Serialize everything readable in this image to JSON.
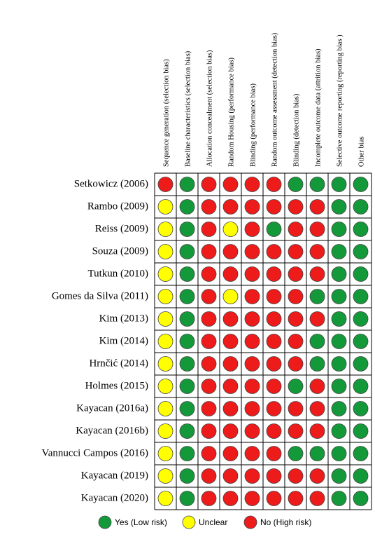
{
  "columns": [
    "Sequence generation (selection bias)",
    "Baseline characteristics (selection bias)",
    "Allocation concealment (selection bias)",
    "Random Housing (performance bias)",
    "Blinding (performance bias)",
    "Random outcome assessment (detection bias)",
    "Blinding  (detection bias)",
    "Incomplete outcome data  (attrition bias)",
    "Selective outcome reporting  (reporting bias )",
    "Other bias"
  ],
  "legend": [
    {
      "label": "Yes (Low risk)",
      "color": "#14993a"
    },
    {
      "label": "Unclear",
      "color": "#ffff00"
    },
    {
      "label": "No (High risk)",
      "color": "#ee1b1b"
    }
  ],
  "rows": [
    {
      "study": "Setkowicz (2006)",
      "ratings": [
        2,
        0,
        2,
        2,
        2,
        2,
        0,
        0,
        0,
        0
      ]
    },
    {
      "study": "Rambo (2009)",
      "ratings": [
        1,
        0,
        2,
        2,
        2,
        2,
        2,
        2,
        0,
        0
      ]
    },
    {
      "study": "Reiss (2009)",
      "ratings": [
        1,
        0,
        2,
        1,
        2,
        0,
        2,
        2,
        0,
        0
      ]
    },
    {
      "study": "Souza (2009)",
      "ratings": [
        1,
        0,
        2,
        2,
        2,
        2,
        2,
        2,
        0,
        0
      ]
    },
    {
      "study": "Tutkun (2010)",
      "ratings": [
        1,
        0,
        2,
        2,
        2,
        2,
        2,
        2,
        0,
        0
      ]
    },
    {
      "study": "Gomes da Silva (2011)",
      "ratings": [
        1,
        0,
        2,
        1,
        2,
        2,
        2,
        0,
        0,
        0
      ]
    },
    {
      "study": "Kim (2013)",
      "ratings": [
        1,
        0,
        2,
        2,
        2,
        2,
        2,
        2,
        0,
        0
      ]
    },
    {
      "study": "Kim (2014)",
      "ratings": [
        1,
        0,
        2,
        2,
        2,
        2,
        2,
        0,
        0,
        0
      ]
    },
    {
      "study": "Hrnčić (2014)",
      "ratings": [
        1,
        0,
        2,
        2,
        2,
        2,
        2,
        0,
        0,
        0
      ]
    },
    {
      "study": "Holmes (2015)",
      "ratings": [
        1,
        0,
        2,
        2,
        2,
        2,
        0,
        2,
        0,
        0
      ]
    },
    {
      "study": "Kayacan (2016a)",
      "ratings": [
        1,
        0,
        2,
        2,
        2,
        2,
        2,
        2,
        0,
        0
      ]
    },
    {
      "study": "Kayacan (2016b)",
      "ratings": [
        1,
        0,
        2,
        2,
        2,
        2,
        2,
        2,
        0,
        0
      ]
    },
    {
      "study": "Vannucci Campos (2016)",
      "ratings": [
        1,
        0,
        2,
        2,
        2,
        2,
        0,
        0,
        0,
        0
      ]
    },
    {
      "study": "Kayacan (2019)",
      "ratings": [
        1,
        0,
        2,
        2,
        2,
        2,
        2,
        2,
        0,
        0
      ]
    },
    {
      "study": "Kayacan (2020)",
      "ratings": [
        1,
        0,
        2,
        2,
        2,
        2,
        2,
        2,
        0,
        0
      ]
    }
  ]
}
